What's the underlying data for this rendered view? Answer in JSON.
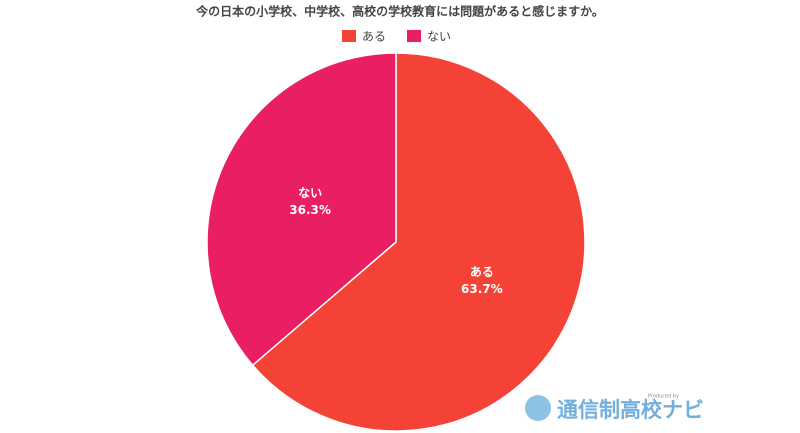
{
  "chart_data": {
    "type": "pie",
    "title": "今の日本の小学校、中学校、高校の学校教育には問題があると感じますか。",
    "categories": [
      "ある",
      "ない"
    ],
    "values": [
      63.7,
      36.3
    ],
    "value_labels": [
      "63.7%",
      "36.3%"
    ],
    "colors": [
      "#f44336",
      "#e91e63"
    ],
    "legend": "top"
  },
  "watermark": {
    "produced_by": "Produced by",
    "brand": "通信制高校ナビ"
  }
}
